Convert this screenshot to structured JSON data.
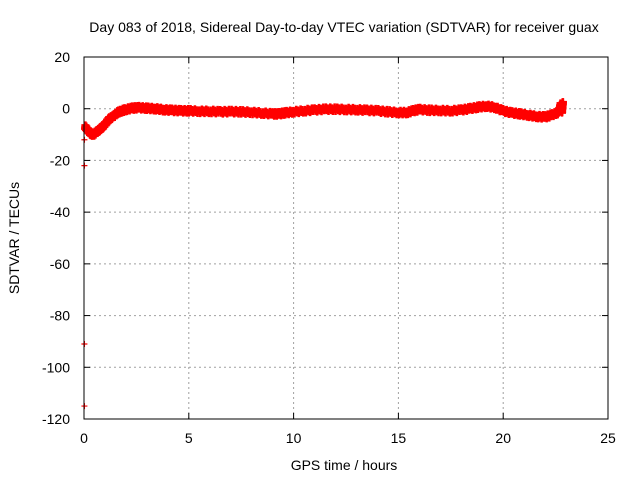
{
  "chart_data": {
    "type": "scatter",
    "title": "Day 083 of 2018, Sidereal Day-to-day VTEC variation (SDTVAR) for receiver guax",
    "xlabel": "GPS time / hours",
    "ylabel": "SDTVAR / TECUs",
    "xlim": [
      0,
      25
    ],
    "ylim": [
      -120,
      20
    ],
    "x_ticks": [
      0,
      5,
      10,
      15,
      20,
      25
    ],
    "y_ticks": [
      -120,
      -100,
      -80,
      -60,
      -40,
      -20,
      0,
      20
    ],
    "grid": true,
    "marker": "plus",
    "colors": {
      "series": "#ff0000"
    },
    "series": [
      {
        "points": [
          [
            0.05,
            -7
          ],
          [
            0.15,
            -8
          ],
          [
            0.3,
            -9.5
          ],
          [
            0.45,
            -10
          ],
          [
            0.6,
            -9
          ],
          [
            0.75,
            -8
          ],
          [
            0.9,
            -7
          ],
          [
            1.05,
            -5.5
          ],
          [
            1.2,
            -4
          ],
          [
            1.4,
            -3
          ],
          [
            1.6,
            -1.5
          ],
          [
            1.8,
            -0.8
          ],
          [
            2.0,
            -0.3
          ],
          [
            2.3,
            0.2
          ],
          [
            2.6,
            0.4
          ],
          [
            3.0,
            0.2
          ],
          [
            3.4,
            0
          ],
          [
            3.8,
            -0.4
          ],
          [
            4.2,
            -0.6
          ],
          [
            4.6,
            -0.8
          ],
          [
            5.0,
            -0.8
          ],
          [
            5.5,
            -1
          ],
          [
            6.0,
            -1
          ],
          [
            6.5,
            -1.2
          ],
          [
            7.0,
            -1.1
          ],
          [
            7.5,
            -1.2
          ],
          [
            8.0,
            -1.4
          ],
          [
            8.5,
            -1.7
          ],
          [
            9.0,
            -2
          ],
          [
            9.3,
            -2
          ],
          [
            9.6,
            -1.6
          ],
          [
            10.0,
            -1.2
          ],
          [
            10.5,
            -0.8
          ],
          [
            11.0,
            -0.5
          ],
          [
            11.5,
            -0.2
          ],
          [
            12.0,
            -0.2
          ],
          [
            12.5,
            -0.3
          ],
          [
            13.0,
            -0.4
          ],
          [
            13.5,
            -0.6
          ],
          [
            14.0,
            -0.8
          ],
          [
            14.5,
            -1.2
          ],
          [
            15.0,
            -1.5
          ],
          [
            15.4,
            -1.5
          ],
          [
            15.7,
            -0.8
          ],
          [
            16.0,
            -0.3
          ],
          [
            16.5,
            -0.6
          ],
          [
            17.0,
            -0.7
          ],
          [
            17.5,
            -0.8
          ],
          [
            18.0,
            -0.5
          ],
          [
            18.4,
            0
          ],
          [
            18.8,
            0.6
          ],
          [
            19.2,
            1
          ],
          [
            19.6,
            0.5
          ],
          [
            20.0,
            -0.8
          ],
          [
            20.4,
            -1.6
          ],
          [
            20.8,
            -2
          ],
          [
            21.2,
            -2.5
          ],
          [
            21.6,
            -3
          ],
          [
            22.0,
            -3.2
          ],
          [
            22.3,
            -2.5
          ],
          [
            22.6,
            -1.5
          ],
          [
            22.7,
            0
          ],
          [
            22.75,
            2
          ],
          [
            22.8,
            -1.5
          ],
          [
            22.85,
            2.5
          ]
        ]
      }
    ],
    "outliers": [
      [
        0.02,
        -12
      ],
      [
        0.02,
        -22
      ],
      [
        0.02,
        -91
      ],
      [
        0.02,
        -115
      ]
    ]
  }
}
